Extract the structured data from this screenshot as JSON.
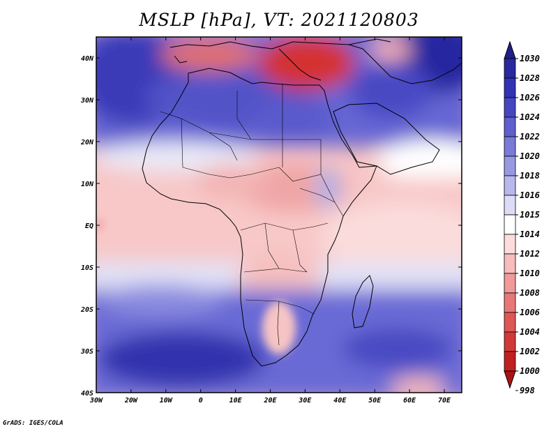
{
  "title": "MSLP [hPa], VT: 2021120803",
  "credit": "GrADS: IGES/COLA",
  "map": {
    "lon_ticks": [
      "30W",
      "20W",
      "10W",
      "0",
      "10E",
      "20E",
      "30E",
      "40E",
      "50E",
      "60E",
      "70E"
    ],
    "lat_ticks": [
      "40N",
      "30N",
      "20N",
      "10N",
      "EQ",
      "10S",
      "20S",
      "30S",
      "40S"
    ],
    "lon_range": [
      -30,
      75
    ],
    "lat_range": [
      -40,
      45
    ]
  },
  "colorbar": {
    "levels": [
      "1030",
      "1028",
      "1026",
      "1024",
      "1022",
      "1020",
      "1018",
      "1016",
      "1015",
      "1014",
      "1012",
      "1010",
      "1008",
      "1006",
      "1004",
      "1002",
      "1000",
      "998"
    ],
    "colors": [
      "#1e1e8c",
      "#28289f",
      "#3232b4",
      "#4646c3",
      "#5f5fcf",
      "#7a7ad9",
      "#9898e2",
      "#b8b8ec",
      "#dcdcf6",
      "#ffffff",
      "#fcdcdc",
      "#f7bcbc",
      "#f09a9a",
      "#e87878",
      "#de5656",
      "#d23838",
      "#c22020",
      "#a81414"
    ]
  },
  "colors": {
    "ocean_blue": "#5a5ad0",
    "land_pink": "#f9caca",
    "deep_blue": "#2f2fae",
    "red_low": "#d83a3a"
  }
}
